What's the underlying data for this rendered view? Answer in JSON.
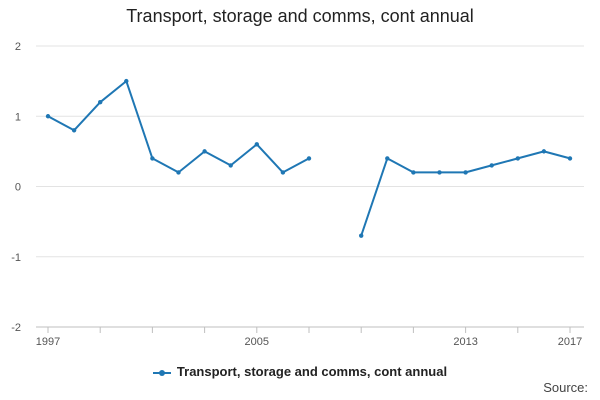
{
  "chart_data": {
    "type": "line",
    "title": "Transport, storage and comms, cont annual",
    "xlabel": "",
    "ylabel": "",
    "ylim": [
      -2,
      2
    ],
    "yticks": [
      -2,
      -1,
      0,
      1,
      2
    ],
    "xlim": [
      1997,
      2017
    ],
    "xtick_labels": [
      1997,
      2005,
      2013,
      2017
    ],
    "grid": true,
    "legend_position": "bottom",
    "series": [
      {
        "name": "Transport, storage and comms, cont annual",
        "color": "#1f77b4",
        "x": [
          1997,
          1998,
          1999,
          2000,
          2001,
          2002,
          2003,
          2004,
          2005,
          2006,
          2007,
          2008,
          2009,
          2010,
          2011,
          2012,
          2013,
          2014,
          2015,
          2016,
          2017
        ],
        "y": [
          1.0,
          0.8,
          1.2,
          1.5,
          0.4,
          0.2,
          0.5,
          0.3,
          0.6,
          0.2,
          0.4,
          null,
          -0.7,
          0.4,
          0.2,
          0.2,
          0.2,
          0.3,
          0.4,
          0.5,
          0.4
        ]
      }
    ]
  },
  "source_label": "Source:"
}
